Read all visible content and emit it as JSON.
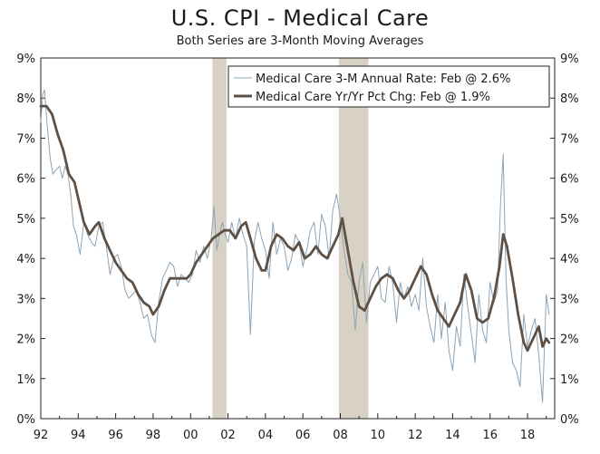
{
  "chart_data": {
    "type": "line",
    "title": "U.S. CPI - Medical Care",
    "subtitle": "Both Series are 3-Month Moving Averages",
    "xlabel": "",
    "ylabel": "",
    "xlim": [
      1992,
      2019.45
    ],
    "ylim": [
      0,
      9
    ],
    "x_ticks": [
      1992,
      1994,
      1996,
      1998,
      2000,
      2002,
      2004,
      2006,
      2008,
      2010,
      2012,
      2014,
      2016,
      2018
    ],
    "x_tick_labels": [
      "92",
      "94",
      "96",
      "98",
      "00",
      "02",
      "04",
      "06",
      "08",
      "10",
      "12",
      "14",
      "16",
      "18"
    ],
    "y_ticks": [
      0,
      1,
      2,
      3,
      4,
      5,
      6,
      7,
      8,
      9
    ],
    "y_tick_labels": [
      "0%",
      "1%",
      "2%",
      "3%",
      "4%",
      "5%",
      "6%",
      "7%",
      "8%",
      "9%"
    ],
    "recessions": [
      [
        2001.17,
        2001.92
      ],
      [
        2007.92,
        2009.5
      ]
    ],
    "legend_position": "top-right",
    "colors": {
      "annual_rate": "#8da4b6",
      "yoy": "#5e5045",
      "recession": "#d8d2c4"
    },
    "series": [
      {
        "name": "Medical Care 3-M Annual Rate: Feb @ 2.6%",
        "x": [
          1992.0,
          1992.1,
          1992.2,
          1992.35,
          1992.5,
          1992.65,
          1992.8,
          1993.0,
          1993.15,
          1993.3,
          1993.45,
          1993.6,
          1993.75,
          1993.9,
          1994.1,
          1994.3,
          1994.5,
          1994.7,
          1994.9,
          1995.1,
          1995.3,
          1995.5,
          1995.7,
          1995.9,
          1996.1,
          1996.3,
          1996.5,
          1996.7,
          1996.9,
          1997.1,
          1997.3,
          1997.5,
          1997.7,
          1997.9,
          1998.1,
          1998.3,
          1998.5,
          1998.7,
          1998.9,
          1999.1,
          1999.3,
          1999.5,
          1999.7,
          1999.9,
          2000.1,
          2000.3,
          2000.5,
          2000.7,
          2000.9,
          2001.1,
          2001.25,
          2001.4,
          2001.55,
          2001.7,
          2001.85,
          2002.0,
          2002.2,
          2002.4,
          2002.6,
          2002.8,
          2003.0,
          2003.2,
          2003.4,
          2003.6,
          2003.8,
          2004.0,
          2004.2,
          2004.4,
          2004.6,
          2004.8,
          2005.0,
          2005.2,
          2005.4,
          2005.6,
          2005.8,
          2006.0,
          2006.2,
          2006.4,
          2006.6,
          2006.8,
          2007.0,
          2007.2,
          2007.4,
          2007.6,
          2007.8,
          2008.0,
          2008.2,
          2008.4,
          2008.6,
          2008.8,
          2009.0,
          2009.2,
          2009.4,
          2009.6,
          2009.8,
          2010.0,
          2010.2,
          2010.4,
          2010.6,
          2010.8,
          2011.0,
          2011.2,
          2011.4,
          2011.6,
          2011.8,
          2012.0,
          2012.2,
          2012.4,
          2012.6,
          2012.8,
          2013.0,
          2013.2,
          2013.4,
          2013.6,
          2013.8,
          2014.0,
          2014.2,
          2014.4,
          2014.6,
          2014.8,
          2015.0,
          2015.2,
          2015.4,
          2015.6,
          2015.8,
          2016.0,
          2016.2,
          2016.4,
          2016.55,
          2016.7,
          2016.85,
          2017.0,
          2017.2,
          2017.4,
          2017.6,
          2017.8,
          2018.0,
          2018.2,
          2018.4,
          2018.6,
          2018.8,
          2019.0,
          2019.15
        ],
        "values": [
          7.4,
          8.1,
          8.2,
          7.3,
          6.5,
          6.1,
          6.2,
          6.3,
          6.0,
          6.3,
          6.1,
          5.6,
          4.8,
          4.6,
          4.1,
          4.9,
          4.6,
          4.4,
          4.3,
          4.8,
          4.9,
          4.3,
          3.6,
          4.0,
          4.1,
          3.8,
          3.2,
          3.0,
          3.1,
          3.2,
          2.9,
          2.5,
          2.6,
          2.1,
          1.9,
          2.9,
          3.5,
          3.7,
          3.9,
          3.8,
          3.3,
          3.6,
          3.5,
          3.4,
          3.6,
          4.2,
          3.9,
          4.3,
          4.0,
          4.5,
          5.3,
          4.2,
          4.6,
          4.9,
          4.6,
          4.4,
          4.9,
          4.5,
          5.0,
          4.6,
          4.3,
          2.1,
          4.4,
          4.9,
          4.5,
          4.2,
          3.5,
          4.9,
          4.1,
          4.5,
          4.3,
          3.7,
          4.0,
          4.6,
          4.4,
          3.8,
          4.2,
          4.7,
          4.9,
          4.1,
          5.1,
          4.8,
          4.0,
          5.2,
          5.6,
          5.0,
          4.2,
          3.6,
          3.4,
          2.2,
          3.4,
          3.9,
          2.4,
          3.4,
          3.6,
          3.8,
          3.0,
          2.9,
          3.8,
          3.4,
          2.4,
          3.4,
          3.0,
          3.3,
          2.8,
          3.1,
          2.7,
          4.0,
          2.8,
          2.3,
          1.9,
          3.1,
          2.0,
          2.9,
          1.7,
          1.2,
          2.3,
          1.8,
          3.6,
          2.8,
          2.1,
          1.4,
          3.1,
          2.2,
          1.9,
          3.4,
          2.9,
          3.2,
          5.3,
          6.6,
          3.5,
          2.2,
          1.4,
          1.2,
          0.8,
          2.6,
          1.8,
          2.2,
          2.5,
          1.6,
          0.4,
          3.1,
          2.6
        ]
      },
      {
        "name": "Medical Care Yr/Yr Pct Chg: Feb @ 1.9%",
        "x": [
          1992.0,
          1992.3,
          1992.6,
          1992.9,
          1993.2,
          1993.5,
          1993.8,
          1994.0,
          1994.3,
          1994.6,
          1994.9,
          1995.1,
          1995.4,
          1995.7,
          1996.0,
          1996.3,
          1996.6,
          1996.9,
          1997.2,
          1997.5,
          1997.8,
          1998.0,
          1998.3,
          1998.6,
          1998.9,
          1999.2,
          1999.5,
          1999.8,
          2000.0,
          2000.3,
          2000.6,
          2000.9,
          2001.2,
          2001.5,
          2001.8,
          2002.1,
          2002.4,
          2002.7,
          2002.95,
          2003.2,
          2003.5,
          2003.8,
          2004.0,
          2004.3,
          2004.6,
          2004.9,
          2005.2,
          2005.5,
          2005.8,
          2006.1,
          2006.4,
          2006.7,
          2007.0,
          2007.3,
          2007.6,
          2007.9,
          2008.1,
          2008.4,
          2008.7,
          2009.0,
          2009.3,
          2009.6,
          2009.9,
          2010.2,
          2010.5,
          2010.8,
          2011.1,
          2011.4,
          2011.7,
          2012.0,
          2012.3,
          2012.6,
          2012.9,
          2013.2,
          2013.5,
          2013.8,
          2014.1,
          2014.4,
          2014.7,
          2015.0,
          2015.3,
          2015.6,
          2015.9,
          2016.2,
          2016.5,
          2016.7,
          2016.9,
          2017.2,
          2017.5,
          2017.8,
          2018.0,
          2018.3,
          2018.6,
          2018.8,
          2019.0,
          2019.15
        ],
        "values": [
          7.8,
          7.8,
          7.6,
          7.1,
          6.7,
          6.1,
          5.9,
          5.5,
          4.9,
          4.6,
          4.8,
          4.9,
          4.5,
          4.2,
          3.9,
          3.7,
          3.5,
          3.4,
          3.1,
          2.9,
          2.8,
          2.6,
          2.8,
          3.2,
          3.5,
          3.5,
          3.5,
          3.5,
          3.6,
          3.9,
          4.1,
          4.3,
          4.5,
          4.6,
          4.7,
          4.7,
          4.5,
          4.8,
          4.9,
          4.5,
          4.0,
          3.7,
          3.7,
          4.3,
          4.6,
          4.5,
          4.3,
          4.2,
          4.4,
          4.0,
          4.1,
          4.3,
          4.1,
          4.0,
          4.3,
          4.6,
          5.0,
          4.2,
          3.4,
          2.8,
          2.7,
          3.0,
          3.3,
          3.5,
          3.6,
          3.5,
          3.2,
          3.0,
          3.2,
          3.5,
          3.8,
          3.6,
          3.1,
          2.7,
          2.5,
          2.3,
          2.6,
          2.9,
          3.6,
          3.2,
          2.5,
          2.4,
          2.5,
          3.0,
          3.8,
          4.6,
          4.3,
          3.5,
          2.6,
          1.9,
          1.7,
          2.0,
          2.3,
          1.8,
          2.0,
          1.9
        ]
      }
    ]
  }
}
